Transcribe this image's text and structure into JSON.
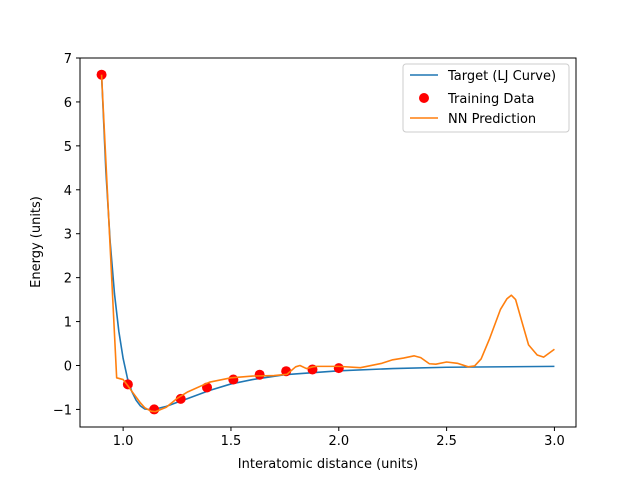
{
  "chart_data": {
    "type": "line",
    "title": "",
    "xlabel": "Interatomic distance (units)",
    "ylabel": "Energy (units)",
    "xlim": [
      0.8,
      3.1
    ],
    "ylim": [
      -1.4,
      7.0
    ],
    "xticks": [
      1.0,
      1.5,
      2.0,
      2.5,
      3.0
    ],
    "xtick_labels": [
      "1.0",
      "1.5",
      "2.0",
      "2.5",
      "3.0"
    ],
    "yticks": [
      -1,
      0,
      1,
      2,
      3,
      4,
      5,
      6,
      7
    ],
    "ytick_labels": [
      "−1",
      "0",
      "1",
      "2",
      "3",
      "4",
      "5",
      "6",
      "7"
    ],
    "grid": false,
    "legend_position": "top-right",
    "series": [
      {
        "name": "Target (LJ Curve)",
        "type": "line",
        "color": "#1f77b4",
        "x": [
          0.9,
          0.92,
          0.94,
          0.96,
          0.98,
          1.0,
          1.02,
          1.04,
          1.06,
          1.08,
          1.1,
          1.12,
          1.15,
          1.2,
          1.25,
          1.3,
          1.4,
          1.5,
          1.6,
          1.75,
          2.0,
          2.25,
          2.5,
          3.0
        ],
        "y": [
          6.62,
          4.42,
          2.81,
          1.63,
          0.78,
          0.16,
          -0.29,
          -0.59,
          -0.79,
          -0.92,
          -0.99,
          -1.0,
          -0.99,
          -0.93,
          -0.84,
          -0.75,
          -0.57,
          -0.42,
          -0.32,
          -0.21,
          -0.12,
          -0.07,
          -0.04,
          -0.02
        ]
      },
      {
        "name": "Training Data",
        "type": "scatter",
        "color": "#ff0000",
        "x": [
          0.9,
          1.022,
          1.144,
          1.267,
          1.389,
          1.511,
          1.633,
          1.756,
          1.878,
          2.0
        ],
        "y": [
          6.62,
          -0.43,
          -1.0,
          -0.76,
          -0.5,
          -0.32,
          -0.21,
          -0.13,
          -0.09,
          -0.06
        ]
      },
      {
        "name": "NN Prediction",
        "type": "line",
        "color": "#ff7f0e",
        "x": [
          0.9,
          0.97,
          1.0,
          1.02,
          1.05,
          1.08,
          1.1,
          1.13,
          1.15,
          1.2,
          1.25,
          1.3,
          1.4,
          1.5,
          1.6,
          1.7,
          1.76,
          1.8,
          1.82,
          1.85,
          1.88,
          1.9,
          2.0,
          2.1,
          2.2,
          2.25,
          2.3,
          2.35,
          2.38,
          2.42,
          2.45,
          2.5,
          2.55,
          2.6,
          2.63,
          2.66,
          2.7,
          2.75,
          2.78,
          2.8,
          2.82,
          2.85,
          2.88,
          2.92,
          2.95,
          3.0
        ],
        "y": [
          6.62,
          -0.28,
          -0.32,
          -0.45,
          -0.65,
          -0.85,
          -0.96,
          -1.04,
          -1.05,
          -0.95,
          -0.75,
          -0.6,
          -0.38,
          -0.28,
          -0.24,
          -0.23,
          -0.2,
          -0.03,
          0.0,
          -0.07,
          -0.03,
          -0.02,
          -0.02,
          -0.05,
          0.05,
          0.13,
          0.17,
          0.22,
          0.18,
          0.04,
          0.03,
          0.08,
          0.05,
          -0.03,
          -0.01,
          0.15,
          0.62,
          1.28,
          1.52,
          1.6,
          1.5,
          0.98,
          0.47,
          0.24,
          0.19,
          0.37
        ]
      }
    ]
  }
}
